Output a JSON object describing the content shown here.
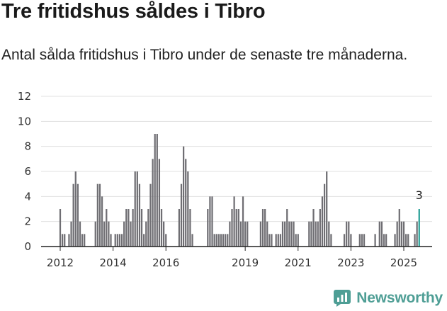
{
  "header": {
    "title": "Tre fritidshus såldes i Tibro",
    "subtitle": "Antal sålda fritidshus i Tibro under de senaste tre månaderna."
  },
  "brand": {
    "name": "Newsworthy",
    "color": "#4e9e95"
  },
  "colors": {
    "bar": "#6f6e73",
    "highlight": "#2aa198",
    "grid": "#e0e0e0",
    "axis": "#222222"
  },
  "chart_data": {
    "type": "bar",
    "title": "Tre fritidshus såldes i Tibro",
    "xlabel": "",
    "ylabel": "",
    "ylim": [
      0,
      12
    ],
    "yticks": [
      0,
      2,
      4,
      6,
      8,
      10,
      12
    ],
    "xtick_labels": [
      "2012",
      "2014",
      "2016",
      "2019",
      "2021",
      "2023",
      "2025"
    ],
    "highlight_label": "3",
    "series": [
      {
        "values": [
          3,
          1,
          1,
          0,
          1,
          2,
          5,
          6,
          5,
          2,
          1,
          1,
          0,
          0,
          0,
          0,
          2,
          5,
          5,
          4,
          2,
          3,
          2,
          1,
          0,
          1,
          1,
          1,
          1,
          2,
          3,
          3,
          2,
          3,
          6,
          6,
          5,
          3,
          1,
          2,
          3,
          5,
          7,
          9,
          9,
          7,
          3,
          2,
          1,
          0,
          0,
          0,
          0,
          0,
          3,
          5,
          8,
          7,
          6,
          3,
          1,
          0,
          0,
          0,
          0,
          0,
          0,
          3,
          4,
          4,
          1,
          1,
          1,
          1,
          1,
          1,
          1,
          2,
          3,
          4,
          3,
          3,
          2,
          4,
          2,
          2,
          0,
          0,
          0,
          0,
          0,
          2,
          3,
          3,
          2,
          1,
          1,
          0,
          1,
          1,
          1,
          2,
          2,
          3,
          2,
          2,
          2,
          1,
          1,
          0,
          0,
          0,
          0,
          2,
          2,
          3,
          2,
          2,
          3,
          4,
          5,
          6,
          2,
          1,
          0,
          0,
          0,
          0,
          0,
          1,
          2,
          2,
          1,
          0,
          0,
          0,
          1,
          1,
          1,
          0,
          0,
          0,
          0,
          1,
          0,
          2,
          2,
          1,
          1,
          0,
          0,
          0,
          1,
          2,
          3,
          2,
          2,
          1,
          1,
          0,
          0,
          1,
          2,
          3
        ]
      }
    ]
  }
}
